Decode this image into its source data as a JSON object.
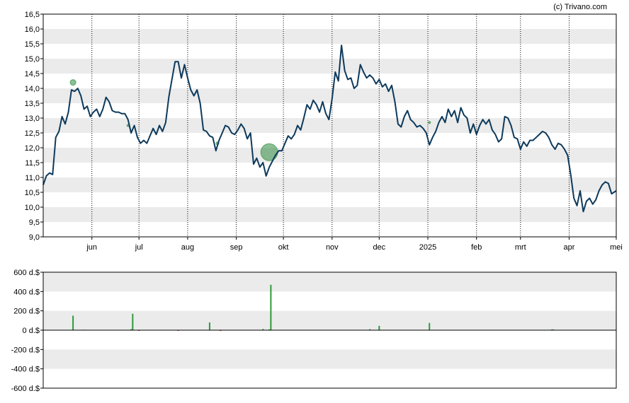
{
  "copyright": "(c) Trivano.com",
  "colors": {
    "price_line": "#0d3a5c",
    "band": "#ebebeb",
    "grid": "#000000",
    "bubble": "#2e8b3f",
    "bar_positive": "#2e9a3a",
    "bar_negative": "#c62828",
    "axis_text": "#000000"
  },
  "chart_data": [
    {
      "type": "line",
      "title": "",
      "ylim": [
        9.0,
        16.5
      ],
      "y_ticks": [
        "9,0",
        "9,5",
        "10,0",
        "10,5",
        "11,0",
        "11,5",
        "12,0",
        "12,5",
        "13,0",
        "13,5",
        "14,0",
        "14,5",
        "15,0",
        "15,5",
        "16,0",
        "16,5"
      ],
      "y_tick_values": [
        9.0,
        9.5,
        10.0,
        10.5,
        11.0,
        11.5,
        12.0,
        12.5,
        13.0,
        13.5,
        14.0,
        14.5,
        15.0,
        15.5,
        16.0,
        16.5
      ],
      "x_start": "2024-05-01",
      "x_end": "2025-05-01",
      "x_ticks": [
        {
          "label": "jun",
          "date": "2024-06-01"
        },
        {
          "label": "jul",
          "date": "2024-07-01"
        },
        {
          "label": "aug",
          "date": "2024-08-01"
        },
        {
          "label": "sep",
          "date": "2024-09-01"
        },
        {
          "label": "okt",
          "date": "2024-10-01"
        },
        {
          "label": "nov",
          "date": "2024-11-01"
        },
        {
          "label": "dec",
          "date": "2024-12-01"
        },
        {
          "label": "2025",
          "date": "2025-01-01"
        },
        {
          "label": "feb",
          "date": "2025-02-01"
        },
        {
          "label": "mrt",
          "date": "2025-03-01"
        },
        {
          "label": "apr",
          "date": "2025-04-01"
        },
        {
          "label": "mei",
          "date": "2025-05-01"
        }
      ],
      "series": [
        {
          "points": [
            [
              "2024-05-01",
              10.75
            ],
            [
              "2024-05-03",
              11.05
            ],
            [
              "2024-05-05",
              11.15
            ],
            [
              "2024-05-07",
              11.1
            ],
            [
              "2024-05-09",
              12.35
            ],
            [
              "2024-05-11",
              12.55
            ],
            [
              "2024-05-13",
              13.05
            ],
            [
              "2024-05-15",
              12.8
            ],
            [
              "2024-05-17",
              13.2
            ],
            [
              "2024-05-19",
              13.95
            ],
            [
              "2024-05-21",
              13.9
            ],
            [
              "2024-05-23",
              14.0
            ],
            [
              "2024-05-25",
              13.75
            ],
            [
              "2024-05-27",
              13.3
            ],
            [
              "2024-05-29",
              13.4
            ],
            [
              "2024-05-31",
              13.05
            ],
            [
              "2024-06-02",
              13.2
            ],
            [
              "2024-06-04",
              13.3
            ],
            [
              "2024-06-06",
              13.05
            ],
            [
              "2024-06-08",
              13.3
            ],
            [
              "2024-06-10",
              13.7
            ],
            [
              "2024-06-12",
              13.55
            ],
            [
              "2024-06-14",
              13.25
            ],
            [
              "2024-06-16",
              13.2
            ],
            [
              "2024-06-18",
              13.2
            ],
            [
              "2024-06-20",
              13.15
            ],
            [
              "2024-06-22",
              13.15
            ],
            [
              "2024-06-24",
              12.95
            ],
            [
              "2024-06-26",
              12.5
            ],
            [
              "2024-06-28",
              12.75
            ],
            [
              "2024-06-30",
              12.35
            ],
            [
              "2024-07-02",
              12.15
            ],
            [
              "2024-07-04",
              12.25
            ],
            [
              "2024-07-06",
              12.15
            ],
            [
              "2024-07-08",
              12.4
            ],
            [
              "2024-07-10",
              12.65
            ],
            [
              "2024-07-12",
              12.45
            ],
            [
              "2024-07-14",
              12.75
            ],
            [
              "2024-07-16",
              12.55
            ],
            [
              "2024-07-18",
              12.85
            ],
            [
              "2024-07-20",
              13.7
            ],
            [
              "2024-07-22",
              14.3
            ],
            [
              "2024-07-24",
              14.9
            ],
            [
              "2024-07-26",
              14.9
            ],
            [
              "2024-07-28",
              14.35
            ],
            [
              "2024-07-30",
              14.8
            ],
            [
              "2024-08-01",
              14.35
            ],
            [
              "2024-08-03",
              13.95
            ],
            [
              "2024-08-05",
              13.75
            ],
            [
              "2024-08-07",
              13.95
            ],
            [
              "2024-08-09",
              13.5
            ],
            [
              "2024-08-11",
              12.6
            ],
            [
              "2024-08-13",
              12.55
            ],
            [
              "2024-08-15",
              12.4
            ],
            [
              "2024-08-17",
              12.35
            ],
            [
              "2024-08-19",
              11.9
            ],
            [
              "2024-08-21",
              12.25
            ],
            [
              "2024-08-23",
              12.5
            ],
            [
              "2024-08-25",
              12.75
            ],
            [
              "2024-08-27",
              12.7
            ],
            [
              "2024-08-29",
              12.5
            ],
            [
              "2024-08-31",
              12.45
            ],
            [
              "2024-09-02",
              12.6
            ],
            [
              "2024-09-04",
              12.8
            ],
            [
              "2024-09-06",
              12.65
            ],
            [
              "2024-09-08",
              12.3
            ],
            [
              "2024-09-10",
              12.5
            ],
            [
              "2024-09-12",
              11.45
            ],
            [
              "2024-09-14",
              11.65
            ],
            [
              "2024-09-16",
              11.35
            ],
            [
              "2024-09-18",
              11.5
            ],
            [
              "2024-09-20",
              11.05
            ],
            [
              "2024-09-22",
              11.35
            ],
            [
              "2024-09-24",
              11.55
            ],
            [
              "2024-09-26",
              11.75
            ],
            [
              "2024-09-28",
              11.9
            ],
            [
              "2024-09-30",
              11.9
            ],
            [
              "2024-10-02",
              12.15
            ],
            [
              "2024-10-04",
              12.4
            ],
            [
              "2024-10-06",
              12.3
            ],
            [
              "2024-10-08",
              12.45
            ],
            [
              "2024-10-10",
              12.75
            ],
            [
              "2024-10-12",
              12.6
            ],
            [
              "2024-10-14",
              13.0
            ],
            [
              "2024-10-16",
              13.45
            ],
            [
              "2024-10-18",
              13.3
            ],
            [
              "2024-10-20",
              13.6
            ],
            [
              "2024-10-22",
              13.45
            ],
            [
              "2024-10-24",
              13.2
            ],
            [
              "2024-10-26",
              13.55
            ],
            [
              "2024-10-28",
              13.15
            ],
            [
              "2024-10-30",
              12.95
            ],
            [
              "2024-11-01",
              13.65
            ],
            [
              "2024-11-03",
              14.55
            ],
            [
              "2024-11-05",
              14.25
            ],
            [
              "2024-11-07",
              15.45
            ],
            [
              "2024-11-09",
              14.6
            ],
            [
              "2024-11-11",
              14.3
            ],
            [
              "2024-11-13",
              14.35
            ],
            [
              "2024-11-15",
              14.0
            ],
            [
              "2024-11-17",
              14.1
            ],
            [
              "2024-11-19",
              14.8
            ],
            [
              "2024-11-21",
              14.55
            ],
            [
              "2024-11-23",
              14.35
            ],
            [
              "2024-11-25",
              14.45
            ],
            [
              "2024-11-27",
              14.35
            ],
            [
              "2024-11-29",
              14.15
            ],
            [
              "2024-12-01",
              14.3
            ],
            [
              "2024-12-03",
              14.05
            ],
            [
              "2024-12-05",
              14.15
            ],
            [
              "2024-12-07",
              13.9
            ],
            [
              "2024-12-09",
              14.1
            ],
            [
              "2024-12-11",
              13.55
            ],
            [
              "2024-12-13",
              12.8
            ],
            [
              "2024-12-15",
              12.7
            ],
            [
              "2024-12-17",
              13.05
            ],
            [
              "2024-12-19",
              13.25
            ],
            [
              "2024-12-21",
              12.95
            ],
            [
              "2024-12-23",
              12.85
            ],
            [
              "2024-12-25",
              12.7
            ],
            [
              "2024-12-27",
              12.75
            ],
            [
              "2024-12-29",
              12.65
            ],
            [
              "2024-12-31",
              12.5
            ],
            [
              "2025-01-02",
              12.1
            ],
            [
              "2025-01-04",
              12.35
            ],
            [
              "2025-01-06",
              12.55
            ],
            [
              "2025-01-08",
              12.85
            ],
            [
              "2025-01-10",
              13.05
            ],
            [
              "2025-01-12",
              12.85
            ],
            [
              "2025-01-14",
              13.3
            ],
            [
              "2025-01-16",
              13.05
            ],
            [
              "2025-01-18",
              13.25
            ],
            [
              "2025-01-20",
              12.85
            ],
            [
              "2025-01-22",
              13.35
            ],
            [
              "2025-01-24",
              13.1
            ],
            [
              "2025-01-26",
              13.0
            ],
            [
              "2025-01-28",
              12.5
            ],
            [
              "2025-01-30",
              12.8
            ],
            [
              "2025-02-01",
              12.45
            ],
            [
              "2025-02-03",
              12.75
            ],
            [
              "2025-02-05",
              12.95
            ],
            [
              "2025-02-07",
              12.8
            ],
            [
              "2025-02-09",
              12.95
            ],
            [
              "2025-02-11",
              12.6
            ],
            [
              "2025-02-13",
              12.45
            ],
            [
              "2025-02-15",
              12.2
            ],
            [
              "2025-02-17",
              12.3
            ],
            [
              "2025-02-19",
              13.05
            ],
            [
              "2025-02-21",
              13.0
            ],
            [
              "2025-02-23",
              12.75
            ],
            [
              "2025-02-25",
              12.35
            ],
            [
              "2025-02-27",
              12.3
            ],
            [
              "2025-03-01",
              11.95
            ],
            [
              "2025-03-03",
              12.2
            ],
            [
              "2025-03-05",
              12.05
            ],
            [
              "2025-03-07",
              12.25
            ],
            [
              "2025-03-09",
              12.25
            ],
            [
              "2025-03-11",
              12.35
            ],
            [
              "2025-03-13",
              12.45
            ],
            [
              "2025-03-15",
              12.55
            ],
            [
              "2025-03-17",
              12.5
            ],
            [
              "2025-03-19",
              12.35
            ],
            [
              "2025-03-21",
              12.1
            ],
            [
              "2025-03-23",
              11.95
            ],
            [
              "2025-03-25",
              12.15
            ],
            [
              "2025-03-27",
              12.1
            ],
            [
              "2025-03-29",
              11.95
            ],
            [
              "2025-03-31",
              11.75
            ],
            [
              "2025-04-02",
              11.1
            ],
            [
              "2025-04-04",
              10.3
            ],
            [
              "2025-04-06",
              10.05
            ],
            [
              "2025-04-08",
              10.55
            ],
            [
              "2025-04-10",
              9.85
            ],
            [
              "2025-04-12",
              10.2
            ],
            [
              "2025-04-14",
              10.3
            ],
            [
              "2025-04-16",
              10.1
            ],
            [
              "2025-04-18",
              10.25
            ],
            [
              "2025-04-20",
              10.55
            ],
            [
              "2025-04-22",
              10.75
            ],
            [
              "2025-04-24",
              10.85
            ],
            [
              "2025-04-26",
              10.8
            ],
            [
              "2025-04-28",
              10.45
            ],
            [
              "2025-05-01",
              10.55
            ]
          ]
        }
      ],
      "annotations": [
        {
          "date": "2024-05-20",
          "value": 14.2,
          "size": 4
        },
        {
          "date": "2024-06-24",
          "value": 12.75,
          "size": 1.5
        },
        {
          "date": "2024-08-20",
          "value": 12.15,
          "size": 2
        },
        {
          "date": "2024-09-22",
          "value": 11.85,
          "size": 12
        },
        {
          "date": "2025-01-02",
          "value": 12.85,
          "size": 1.5
        }
      ]
    },
    {
      "type": "bar",
      "title": "",
      "ylim": [
        -600,
        600
      ],
      "y_ticks": [
        "600 d.$",
        "400 d.$",
        "200 d.$",
        "0 d.$",
        "-200 d.$",
        "-400 d.$",
        "-600 d.$"
      ],
      "y_tick_values": [
        600,
        400,
        200,
        0,
        -200,
        -400,
        -600
      ],
      "series": [
        {
          "points": [
            [
              "2024-05-20",
              150
            ],
            [
              "2024-05-27",
              5
            ],
            [
              "2024-06-26",
              10
            ],
            [
              "2024-06-27",
              170
            ],
            [
              "2024-07-01",
              -5
            ],
            [
              "2024-07-26",
              -5
            ],
            [
              "2024-08-15",
              80
            ],
            [
              "2024-08-22",
              -8
            ],
            [
              "2024-09-18",
              12
            ],
            [
              "2024-09-22",
              8
            ],
            [
              "2024-09-23",
              470
            ],
            [
              "2024-11-25",
              10
            ],
            [
              "2024-12-01",
              45
            ],
            [
              "2025-01-02",
              75
            ],
            [
              "2025-03-21",
              8
            ],
            [
              "2025-03-22",
              8
            ]
          ]
        }
      ]
    }
  ]
}
